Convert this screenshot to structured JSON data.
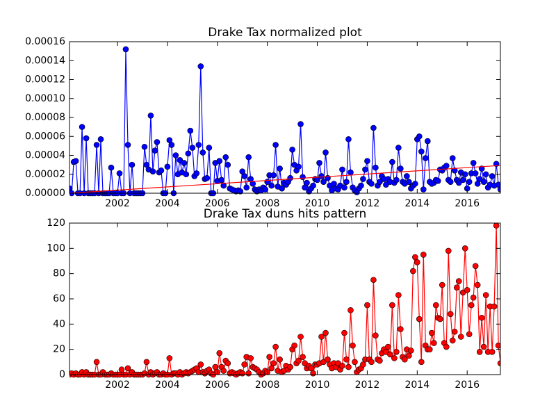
{
  "chart_data": [
    {
      "type": "line",
      "title": "Drake Tax normalized plot",
      "xlim": [
        2000.08,
        2017.33
      ],
      "xticks": [
        2002,
        2004,
        2006,
        2008,
        2010,
        2012,
        2014,
        2016
      ],
      "ylim": [
        0,
        0.00016
      ],
      "yticks": [
        {
          "value": 0,
          "label": "0.00000"
        },
        {
          "value": 2e-05,
          "label": "0.00002"
        },
        {
          "value": 4e-05,
          "label": "0.00004"
        },
        {
          "value": 6e-05,
          "label": "0.00006"
        },
        {
          "value": 8e-05,
          "label": "0.00008"
        },
        {
          "value": 0.0001,
          "label": "0.00010"
        },
        {
          "value": 0.00012,
          "label": "0.00012"
        },
        {
          "value": 0.00014,
          "label": "0.00014"
        },
        {
          "value": 0.00016,
          "label": "0.00016"
        }
      ],
      "x": [
        2000.083,
        2000.167,
        2000.25,
        2000.333,
        2000.417,
        2000.5,
        2000.583,
        2000.667,
        2000.75,
        2000.833,
        2000.917,
        2001,
        2001.083,
        2001.167,
        2001.25,
        2001.333,
        2001.417,
        2001.5,
        2001.583,
        2001.667,
        2001.75,
        2001.833,
        2001.917,
        2002,
        2002.083,
        2002.167,
        2002.25,
        2002.333,
        2002.417,
        2002.5,
        2002.583,
        2002.667,
        2002.75,
        2002.833,
        2002.917,
        2003,
        2003.083,
        2003.167,
        2003.25,
        2003.333,
        2003.417,
        2003.5,
        2003.583,
        2003.667,
        2003.75,
        2003.833,
        2003.917,
        2004,
        2004.083,
        2004.167,
        2004.25,
        2004.333,
        2004.417,
        2004.5,
        2004.583,
        2004.667,
        2004.75,
        2004.833,
        2004.917,
        2005,
        2005.083,
        2005.167,
        2005.25,
        2005.333,
        2005.417,
        2005.5,
        2005.583,
        2005.667,
        2005.75,
        2005.833,
        2005.917,
        2006,
        2006.083,
        2006.167,
        2006.25,
        2006.333,
        2006.417,
        2006.5,
        2006.583,
        2006.667,
        2006.75,
        2006.833,
        2006.917,
        2007,
        2007.083,
        2007.167,
        2007.25,
        2007.333,
        2007.417,
        2007.5,
        2007.583,
        2007.667,
        2007.75,
        2007.833,
        2007.917,
        2008,
        2008.083,
        2008.167,
        2008.25,
        2008.333,
        2008.417,
        2008.5,
        2008.583,
        2008.667,
        2008.75,
        2008.833,
        2008.917,
        2009,
        2009.083,
        2009.167,
        2009.25,
        2009.333,
        2009.417,
        2009.5,
        2009.583,
        2009.667,
        2009.75,
        2009.833,
        2009.917,
        2010,
        2010.083,
        2010.167,
        2010.25,
        2010.333,
        2010.417,
        2010.5,
        2010.583,
        2010.667,
        2010.75,
        2010.833,
        2010.917,
        2011,
        2011.083,
        2011.167,
        2011.25,
        2011.333,
        2011.417,
        2011.5,
        2011.583,
        2011.667,
        2011.75,
        2011.833,
        2011.917,
        2012,
        2012.083,
        2012.167,
        2012.25,
        2012.333,
        2012.417,
        2012.5,
        2012.583,
        2012.667,
        2012.75,
        2012.833,
        2012.917,
        2013,
        2013.083,
        2013.167,
        2013.25,
        2013.333,
        2013.417,
        2013.5,
        2013.583,
        2013.667,
        2013.75,
        2013.833,
        2013.917,
        2014,
        2014.083,
        2014.167,
        2014.25,
        2014.333,
        2014.417,
        2014.5,
        2014.583,
        2014.667,
        2014.75,
        2014.833,
        2014.917,
        2015,
        2015.083,
        2015.167,
        2015.25,
        2015.333,
        2015.417,
        2015.5,
        2015.583,
        2015.667,
        2015.75,
        2015.833,
        2015.917,
        2016,
        2016.083,
        2016.167,
        2016.25,
        2016.333,
        2016.417,
        2016.5,
        2016.583,
        2016.667,
        2016.75,
        2016.833,
        2016.917,
        2017,
        2017.083,
        2017.167,
        2017.25,
        2017.333
      ],
      "series": [
        {
          "color": "#0000ff",
          "marker": true,
          "values": [
            5e-06,
            0,
            3.3e-05,
            3.4e-05,
            0,
            0,
            7e-05,
            0,
            5.8e-05,
            0,
            0,
            0,
            0,
            5.1e-05,
            0,
            5.7e-05,
            0,
            0,
            0,
            0,
            2.7e-05,
            0,
            0,
            0,
            2.1e-05,
            0,
            0,
            0.000152,
            5.1e-05,
            0,
            3e-05,
            0,
            0,
            0,
            0,
            0,
            4.9e-05,
            3e-05,
            2.5e-05,
            8.2e-05,
            2.3e-05,
            4.5e-05,
            5.4e-05,
            2.2e-05,
            2.4e-05,
            0,
            0,
            2.8e-05,
            5.6e-05,
            5.1e-05,
            0,
            4e-05,
            2e-05,
            3.5e-05,
            2.2e-05,
            3.2e-05,
            2e-05,
            4.2e-05,
            6.6e-05,
            4.8e-05,
            1.8e-05,
            2.1e-05,
            5.1e-05,
            0.000134,
            4.3e-05,
            1.5e-05,
            1.6e-05,
            4.8e-05,
            0,
            0,
            3.2e-05,
            1.3e-05,
            3.4e-05,
            1.4e-05,
            8e-06,
            3.8e-05,
            3e-05,
            5e-06,
            4e-06,
            3e-06,
            2e-06,
            3e-06,
            2e-06,
            2.3e-05,
            1.8e-05,
            6e-06,
            3.8e-05,
            1.5e-05,
            1e-05,
            4e-06,
            2e-06,
            4e-06,
            3e-06,
            6e-06,
            4e-06,
            1.2e-05,
            1.9e-05,
            8e-06,
            1.9e-05,
            5.1e-05,
            7e-06,
            2.6e-05,
            5e-06,
            1.1e-05,
            9e-06,
            1.2e-05,
            1.6e-05,
            4.6e-05,
            3e-05,
            2.4e-05,
            2.8e-05,
            7.3e-05,
            1.7e-05,
            6e-06,
            1.1e-05,
            2e-06,
            5e-06,
            8e-06,
            1.5e-05,
            1.4e-05,
            3.2e-05,
            1.8e-05,
            1.2e-05,
            4.3e-05,
            1.6e-05,
            8e-06,
            3e-06,
            1e-05,
            5e-06,
            4e-06,
            8e-06,
            2.5e-05,
            6e-06,
            1.2e-05,
            5.7e-05,
            2.2e-05,
            6e-06,
            3e-06,
            1e-06,
            5e-06,
            8e-06,
            1.5e-05,
            2.5e-05,
            3.4e-05,
            1.2e-05,
            1e-05,
            6.9e-05,
            2.7e-05,
            8e-06,
            1.2e-05,
            1.8e-05,
            1.5e-05,
            9e-06,
            1.5e-05,
            1.2e-05,
            3.3e-05,
            1.1e-05,
            1.4e-05,
            4.8e-05,
            2.6e-05,
            1.2e-05,
            1e-05,
            1.8e-05,
            1.2e-05,
            5e-06,
            8e-06,
            1e-05,
            5.7e-05,
            6e-05,
            4.4e-05,
            4e-06,
            3.7e-05,
            5.5e-05,
            1.2e-05,
            1e-05,
            1.1e-05,
            1.4e-05,
            1.3e-05,
            2.5e-05,
            2.4e-05,
            2.7e-05,
            2.9e-05,
            1.4e-05,
            1.2e-05,
            3.7e-05,
            2.4e-05,
            1.4e-05,
            1.1e-05,
            2.2e-05,
            1.4e-05,
            2e-05,
            5e-06,
            1.2e-05,
            2.1e-05,
            3.2e-05,
            2.1e-05,
            1e-05,
            1.5e-05,
            2.6e-05,
            1.2e-05,
            2e-05,
            6e-06,
            9e-06,
            1.8e-05,
            8e-06,
            3.1e-05,
            9e-06,
            4e-06
          ]
        },
        {
          "color": "#ff0000",
          "marker": false,
          "x": [
            2000.08,
            2017.33
          ],
          "values": [
            0,
            2.93e-05
          ]
        }
      ]
    },
    {
      "type": "line",
      "title": "Drake Tax duns hits pattern",
      "xlim": [
        2000.08,
        2017.33
      ],
      "xticks": [
        2002,
        2004,
        2006,
        2008,
        2010,
        2012,
        2014,
        2016
      ],
      "ylim": [
        0,
        120
      ],
      "yticks": [
        0,
        20,
        40,
        60,
        80,
        100,
        120
      ],
      "x": [
        2000.083,
        2000.167,
        2000.25,
        2000.333,
        2000.417,
        2000.5,
        2000.583,
        2000.667,
        2000.75,
        2000.833,
        2000.917,
        2001,
        2001.083,
        2001.167,
        2001.25,
        2001.333,
        2001.417,
        2001.5,
        2001.583,
        2001.667,
        2001.75,
        2001.833,
        2001.917,
        2002,
        2002.083,
        2002.167,
        2002.25,
        2002.333,
        2002.417,
        2002.5,
        2002.583,
        2002.667,
        2002.75,
        2002.833,
        2002.917,
        2003,
        2003.083,
        2003.167,
        2003.25,
        2003.333,
        2003.417,
        2003.5,
        2003.583,
        2003.667,
        2003.75,
        2003.833,
        2003.917,
        2004,
        2004.083,
        2004.167,
        2004.25,
        2004.333,
        2004.417,
        2004.5,
        2004.583,
        2004.667,
        2004.75,
        2004.833,
        2004.917,
        2005,
        2005.083,
        2005.167,
        2005.25,
        2005.333,
        2005.417,
        2005.5,
        2005.583,
        2005.667,
        2005.75,
        2005.833,
        2005.917,
        2006,
        2006.083,
        2006.167,
        2006.25,
        2006.333,
        2006.417,
        2006.5,
        2006.583,
        2006.667,
        2006.75,
        2006.833,
        2006.917,
        2007,
        2007.083,
        2007.167,
        2007.25,
        2007.333,
        2007.417,
        2007.5,
        2007.583,
        2007.667,
        2007.75,
        2007.833,
        2007.917,
        2008,
        2008.083,
        2008.167,
        2008.25,
        2008.333,
        2008.417,
        2008.5,
        2008.583,
        2008.667,
        2008.75,
        2008.833,
        2008.917,
        2009,
        2009.083,
        2009.167,
        2009.25,
        2009.333,
        2009.417,
        2009.5,
        2009.583,
        2009.667,
        2009.75,
        2009.833,
        2009.917,
        2010,
        2010.083,
        2010.167,
        2010.25,
        2010.333,
        2010.417,
        2010.5,
        2010.583,
        2010.667,
        2010.75,
        2010.833,
        2010.917,
        2011,
        2011.083,
        2011.167,
        2011.25,
        2011.333,
        2011.417,
        2011.5,
        2011.583,
        2011.667,
        2011.75,
        2011.833,
        2011.917,
        2012,
        2012.083,
        2012.167,
        2012.25,
        2012.333,
        2012.417,
        2012.5,
        2012.583,
        2012.667,
        2012.75,
        2012.833,
        2012.917,
        2013,
        2013.083,
        2013.167,
        2013.25,
        2013.333,
        2013.417,
        2013.5,
        2013.583,
        2013.667,
        2013.75,
        2013.833,
        2013.917,
        2014,
        2014.083,
        2014.167,
        2014.25,
        2014.333,
        2014.417,
        2014.5,
        2014.583,
        2014.667,
        2014.75,
        2014.833,
        2014.917,
        2015,
        2015.083,
        2015.167,
        2015.25,
        2015.333,
        2015.417,
        2015.5,
        2015.583,
        2015.667,
        2015.75,
        2015.833,
        2015.917,
        2016,
        2016.083,
        2016.167,
        2016.25,
        2016.333,
        2016.417,
        2016.5,
        2016.583,
        2016.667,
        2016.75,
        2016.833,
        2016.917,
        2017,
        2017.083,
        2017.167,
        2017.25,
        2017.333
      ],
      "series": [
        {
          "color": "#ff0000",
          "marker": true,
          "values": [
            0,
            1,
            0,
            1,
            0,
            0,
            2,
            0,
            2,
            0,
            0,
            0,
            0,
            10,
            0,
            0,
            2,
            0,
            0,
            0,
            1,
            0,
            0,
            0,
            0,
            4,
            0,
            0,
            5,
            0,
            2,
            0,
            0,
            0,
            0,
            0,
            1,
            10,
            0,
            2,
            0,
            1,
            2,
            0,
            0,
            1,
            0,
            0,
            13,
            0,
            1,
            1,
            0,
            2,
            0,
            1,
            2,
            1,
            2,
            3,
            4,
            5,
            2,
            8,
            2,
            1,
            3,
            4,
            1,
            0,
            6,
            2,
            17,
            6,
            3,
            11,
            9,
            1,
            2,
            1,
            0,
            1,
            2,
            1,
            8,
            14,
            1,
            13,
            6,
            5,
            4,
            2,
            0,
            1,
            3,
            2,
            14,
            5,
            9,
            22,
            3,
            12,
            2,
            3,
            7,
            4,
            6,
            20,
            23,
            9,
            11,
            30,
            14,
            9,
            5,
            7,
            5,
            1,
            8,
            8,
            9,
            30,
            10,
            33,
            12,
            8,
            5,
            9,
            6,
            9,
            4,
            7,
            33,
            12,
            6,
            51,
            23,
            10,
            2,
            4,
            5,
            8,
            12,
            55,
            12,
            10,
            75,
            31,
            12,
            11,
            17,
            20,
            18,
            22,
            16,
            55,
            13,
            18,
            63,
            36,
            14,
            12,
            20,
            15,
            19,
            82,
            93,
            89,
            44,
            10,
            95,
            23,
            20,
            20,
            33,
            25,
            55,
            45,
            44,
            71,
            25,
            22,
            98,
            48,
            27,
            34,
            69,
            74,
            30,
            65,
            100,
            67,
            32,
            55,
            61,
            86,
            71,
            18,
            45,
            22,
            63,
            18,
            54,
            18,
            54,
            118,
            23,
            9
          ]
        }
      ]
    }
  ]
}
